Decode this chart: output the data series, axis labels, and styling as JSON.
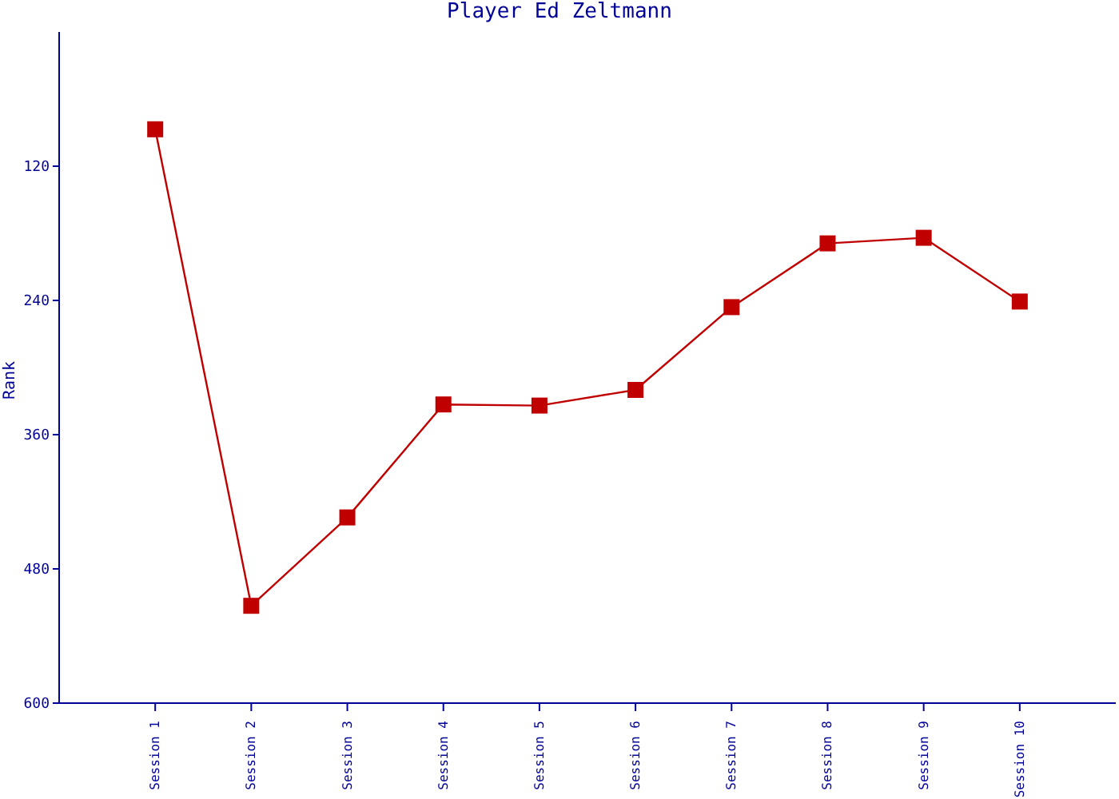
{
  "chart_data": {
    "type": "line",
    "title": "Player Ed Zeltmann",
    "ylabel": "Rank",
    "categories": [
      "Session 1",
      "Session 2",
      "Session 3",
      "Session 4",
      "Session 5",
      "Session 6",
      "Session 7",
      "Session 8",
      "Session 9",
      "Session 10"
    ],
    "series": [
      {
        "color": "#c00000",
        "values": [
          87,
          513,
          434,
          333,
          334,
          320,
          246,
          189,
          184,
          241
        ]
      }
    ],
    "ylim": [
      600,
      0
    ],
    "yticks": [
      120,
      240,
      360,
      480,
      600
    ],
    "grid": false,
    "legend": false,
    "marker": "square",
    "line_style": "solid"
  }
}
